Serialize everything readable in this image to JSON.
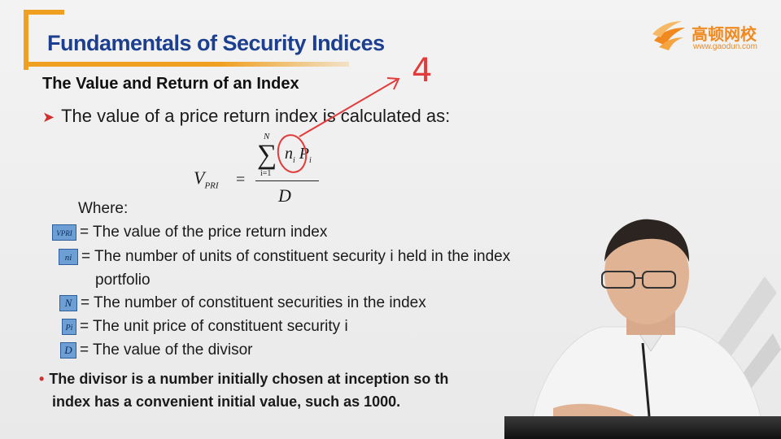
{
  "slide": {
    "title": "Fundamentals of Security Indices",
    "subtitle": "The Value and Return of an Index",
    "bullet_main": "The value of a price return index is calculated as:",
    "formula": {
      "lhs": "V",
      "lhs_sub": "PRI",
      "equals": "=",
      "sum_symbol": "∑",
      "sum_upper": "N",
      "sum_lower": "i=1",
      "num_n": "n",
      "num_n_sub": "i",
      "num_p": "P",
      "num_p_sub": "i",
      "denominator": "D"
    },
    "where_label": "Where:",
    "definitions": [
      {
        "symbol": "VPRI",
        "text": "= The value of the price return index"
      },
      {
        "symbol": "ni",
        "text": "= The number of units of constituent security i held in the index"
      },
      {
        "symbol": "N",
        "text": "= The number of constituent securities in the index"
      },
      {
        "symbol": "Pi",
        "text": "= The unit price of constituent security i"
      },
      {
        "symbol": "D",
        "text": "= The value of the divisor"
      }
    ],
    "definition_continuation": "portfolio",
    "bottom_line1": "The divisor is a number initially chosen at inception so t",
    "bottom_line1_tail": "h",
    "bottom_line2": "index has a convenient initial value, such as 1000.",
    "handwriting": "4"
  },
  "logo": {
    "chinese": "高顿网校",
    "url": "www.gaodun.com",
    "icon": "gaodun-wings-icon"
  },
  "colors": {
    "title": "#1d3f8f",
    "accent": "#f0a020",
    "ink": "#e23b3b",
    "symbol_bg": "#6d9fd4"
  }
}
